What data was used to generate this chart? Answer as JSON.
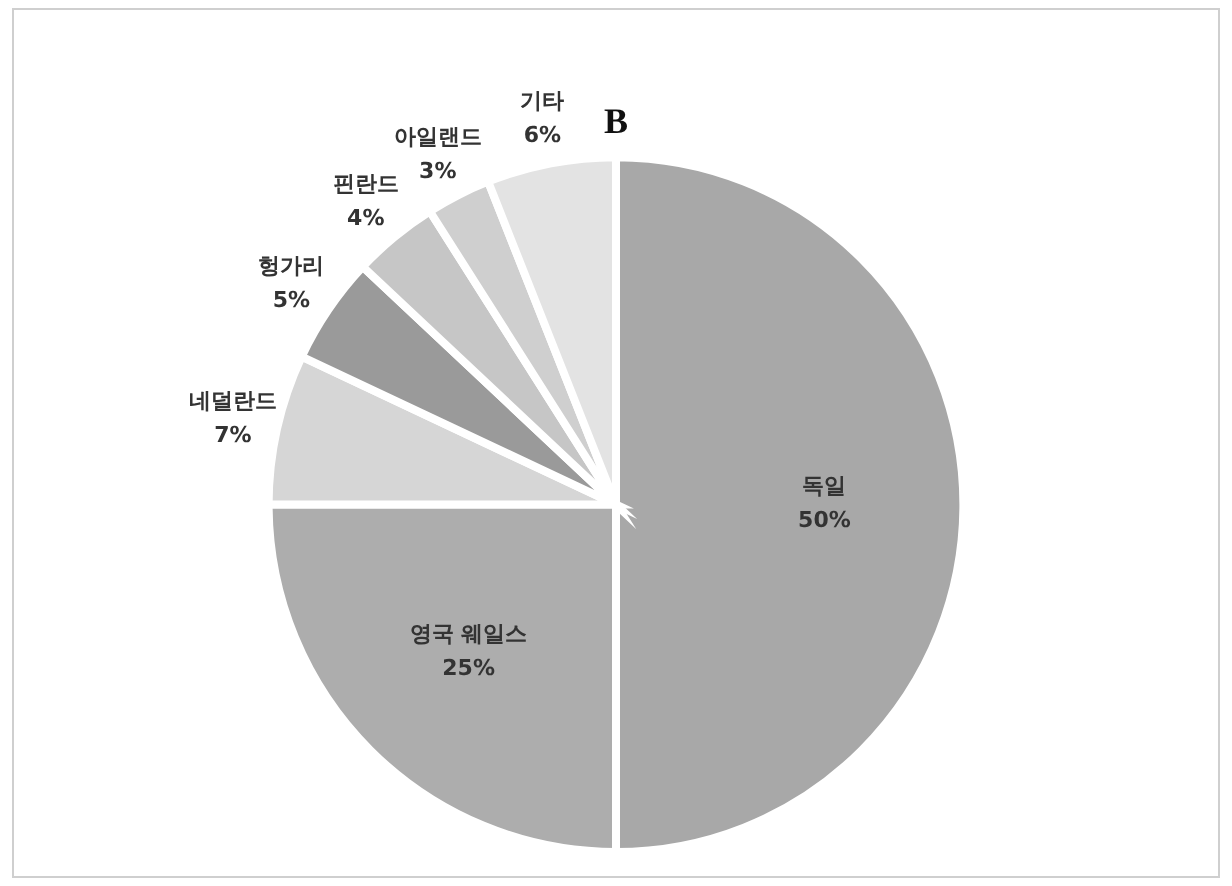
{
  "chart_data": {
    "type": "pie",
    "title": "B",
    "categories": [
      "독일",
      "영국 웨일스",
      "네덜란드",
      "헝가리",
      "핀란드",
      "아일랜드",
      "기타"
    ],
    "values": [
      50,
      25,
      7,
      5,
      4,
      3,
      6
    ],
    "value_labels": [
      "50%",
      "25%",
      "7%",
      "5%",
      "4%",
      "3%",
      "6%"
    ],
    "colors": [
      "#a8a8a8",
      "#adadad",
      "#d6d6d6",
      "#9a9a9a",
      "#c6c6c6",
      "#cfcfcf",
      "#e3e3e3"
    ],
    "legend": false
  }
}
